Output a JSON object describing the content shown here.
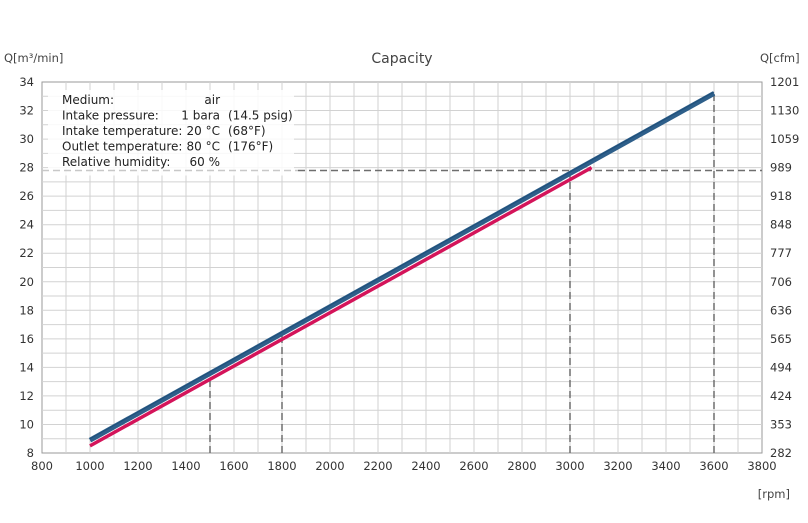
{
  "chart_data": {
    "type": "line",
    "title": "Capacity",
    "ylabel_left": "Q[m³/min]",
    "ylabel_right": "Q[cfm]",
    "xlabel": "[rpm]",
    "xlim": [
      800,
      3800
    ],
    "ylim": [
      8,
      34
    ],
    "x_ticks": [
      "800",
      "1000",
      "1200",
      "1400",
      "1600",
      "1800",
      "2000",
      "2200",
      "2400",
      "2600",
      "2800",
      "3000",
      "3200",
      "3400",
      "3600",
      "3800"
    ],
    "y_ticks_left": [
      "8",
      "10",
      "12",
      "14",
      "16",
      "18",
      "20",
      "22",
      "24",
      "26",
      "28",
      "30",
      "32",
      "34"
    ],
    "y_ticks_right": [
      "282",
      "353",
      "424",
      "494",
      "565",
      "636",
      "706",
      "777",
      "848",
      "918",
      "989",
      "1059",
      "1130",
      "1201"
    ],
    "grid": true,
    "series": [
      {
        "color": "#2e5f8a",
        "x": [
          1000,
          3600
        ],
        "y": [
          8.9,
          33.2
        ]
      },
      {
        "color": "#d4145a",
        "x": [
          1000,
          3090
        ],
        "y": [
          8.5,
          28.0
        ]
      }
    ],
    "reference_lines": {
      "vertical_rpm": [
        1500,
        1800,
        3000,
        3600
      ],
      "horizontal_q": 27.8
    },
    "conditions": [
      {
        "label": "Medium:",
        "value": "air",
        "alt": ""
      },
      {
        "label": "Intake pressure:",
        "value": "1 bara",
        "alt": "(14.5 psig)"
      },
      {
        "label": "Intake temperature:",
        "value": "20 °C",
        "alt": "(68°F)"
      },
      {
        "label": "Outlet temperature:",
        "value": "80 °C",
        "alt": "(176°F)"
      },
      {
        "label": "Relative humidity:",
        "value": "60 %",
        "alt": ""
      }
    ]
  }
}
